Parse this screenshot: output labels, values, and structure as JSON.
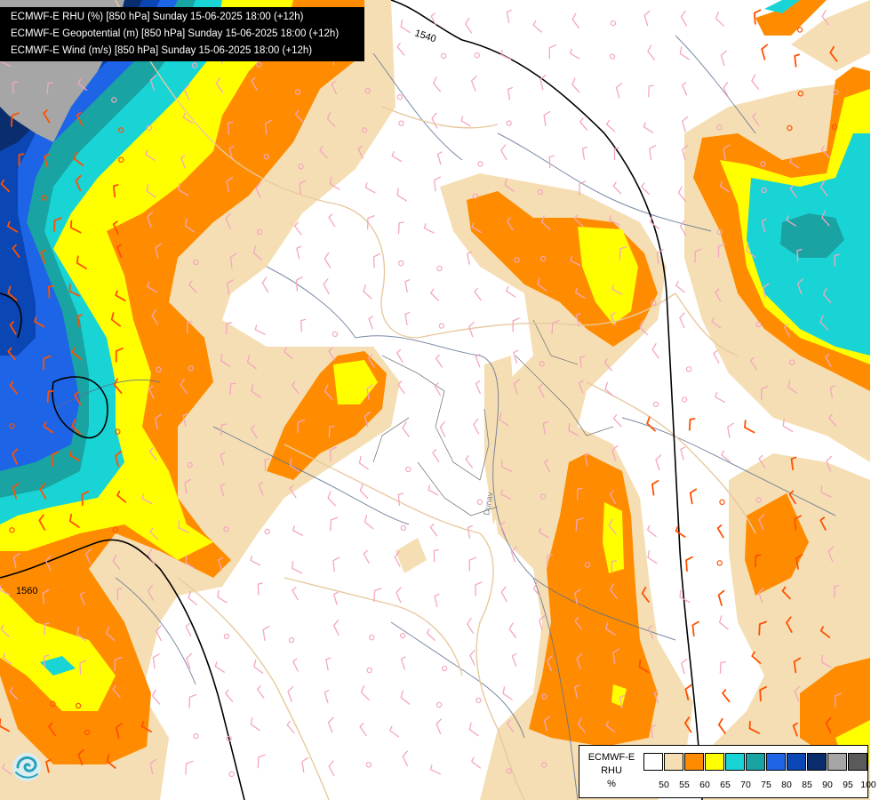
{
  "titles": [
    "ECMWF-E RHU (%) [850 hPa] Sunday 15-06-2025 18:00 (+12h)",
    "ECMWF-E Geopotential (m) [850 hPa] Sunday 15-06-2025 18:00 (+12h)",
    "ECMWF-E Wind (m/s) [850 hPa] Sunday 15-06-2025 18:00 (+12h)"
  ],
  "contour_labels": {
    "top": "1540",
    "left": "1560"
  },
  "river_label": "Dunav",
  "legend": {
    "model": "ECMWF-E",
    "variable": "RHU",
    "unit": "%",
    "classes": [
      {
        "value": "50",
        "color": "#ffffff"
      },
      {
        "value": "55",
        "color": "#f5deb3"
      },
      {
        "value": "60",
        "color": "#ff8c00"
      },
      {
        "value": "65",
        "color": "#ffff00"
      },
      {
        "value": "70",
        "color": "#19d4d4"
      },
      {
        "value": "75",
        "color": "#1aa3a3"
      },
      {
        "value": "80",
        "color": "#1e64e6"
      },
      {
        "value": "85",
        "color": "#0a46b4"
      },
      {
        "value": "90",
        "color": "#0a2d6e"
      },
      {
        "value": "95",
        "color": "#a6a6a6"
      },
      {
        "value": "100",
        "color": "#5a5a5a"
      }
    ]
  },
  "colors": {
    "rh_55": "#f5deb3",
    "rh_60": "#ff8c00",
    "rh_65": "#ffff00",
    "rh_70": "#19d4d4",
    "rh_75": "#1aa3a3",
    "rh_80": "#1e64e6",
    "rh_85": "#0a46b4",
    "rh_90": "#0a2d6e",
    "rh_95": "#a6a6a6",
    "border": "#e8c9a0",
    "river": "#5a6e91",
    "admin": "#7d7d7d",
    "wind_light": "#f4a6c0",
    "wind_strong": "#ff5000",
    "contour": "#000000"
  },
  "logo_icon": "ecmwf-logo-icon"
}
